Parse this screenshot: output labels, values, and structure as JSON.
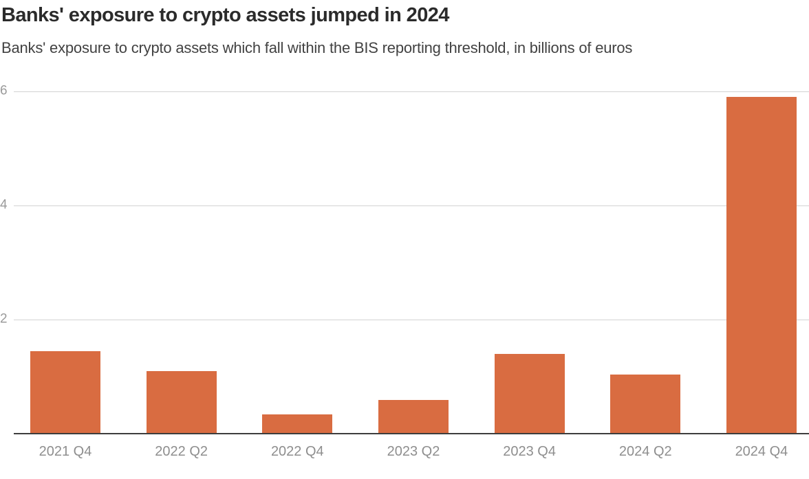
{
  "header": {
    "title": "Banks' exposure to crypto assets jumped in 2024",
    "subtitle": "Banks' exposure to crypto assets which fall within the BIS reporting threshold, in billions of euros"
  },
  "chart_data": {
    "type": "bar",
    "title": "Banks' exposure to crypto assets jumped in 2024",
    "subtitle": "Banks' exposure to crypto assets which fall within the BIS reporting threshold, in billions of euros",
    "categories": [
      "2021 Q4",
      "2022 Q2",
      "2022 Q4",
      "2023 Q2",
      "2023 Q4",
      "2024 Q2",
      "2024 Q4"
    ],
    "values": [
      1.45,
      1.1,
      0.34,
      0.59,
      1.4,
      1.04,
      5.9
    ],
    "xlabel": "",
    "ylabel": "",
    "y_ticks": [
      2,
      4,
      6
    ],
    "ylim": [
      0,
      6.2
    ],
    "grid": true,
    "legend": false,
    "bar_color": "#D96C41"
  },
  "colors": {
    "bar": "#D96C41",
    "gridline": "#d2d2d2",
    "axis_line": "#3d3d3d",
    "y_tick_label": "#9a9a9a",
    "x_tick_label": "#8e8e8e",
    "title": "#2b2b2b",
    "subtitle": "#424242",
    "background": "#ffffff"
  }
}
